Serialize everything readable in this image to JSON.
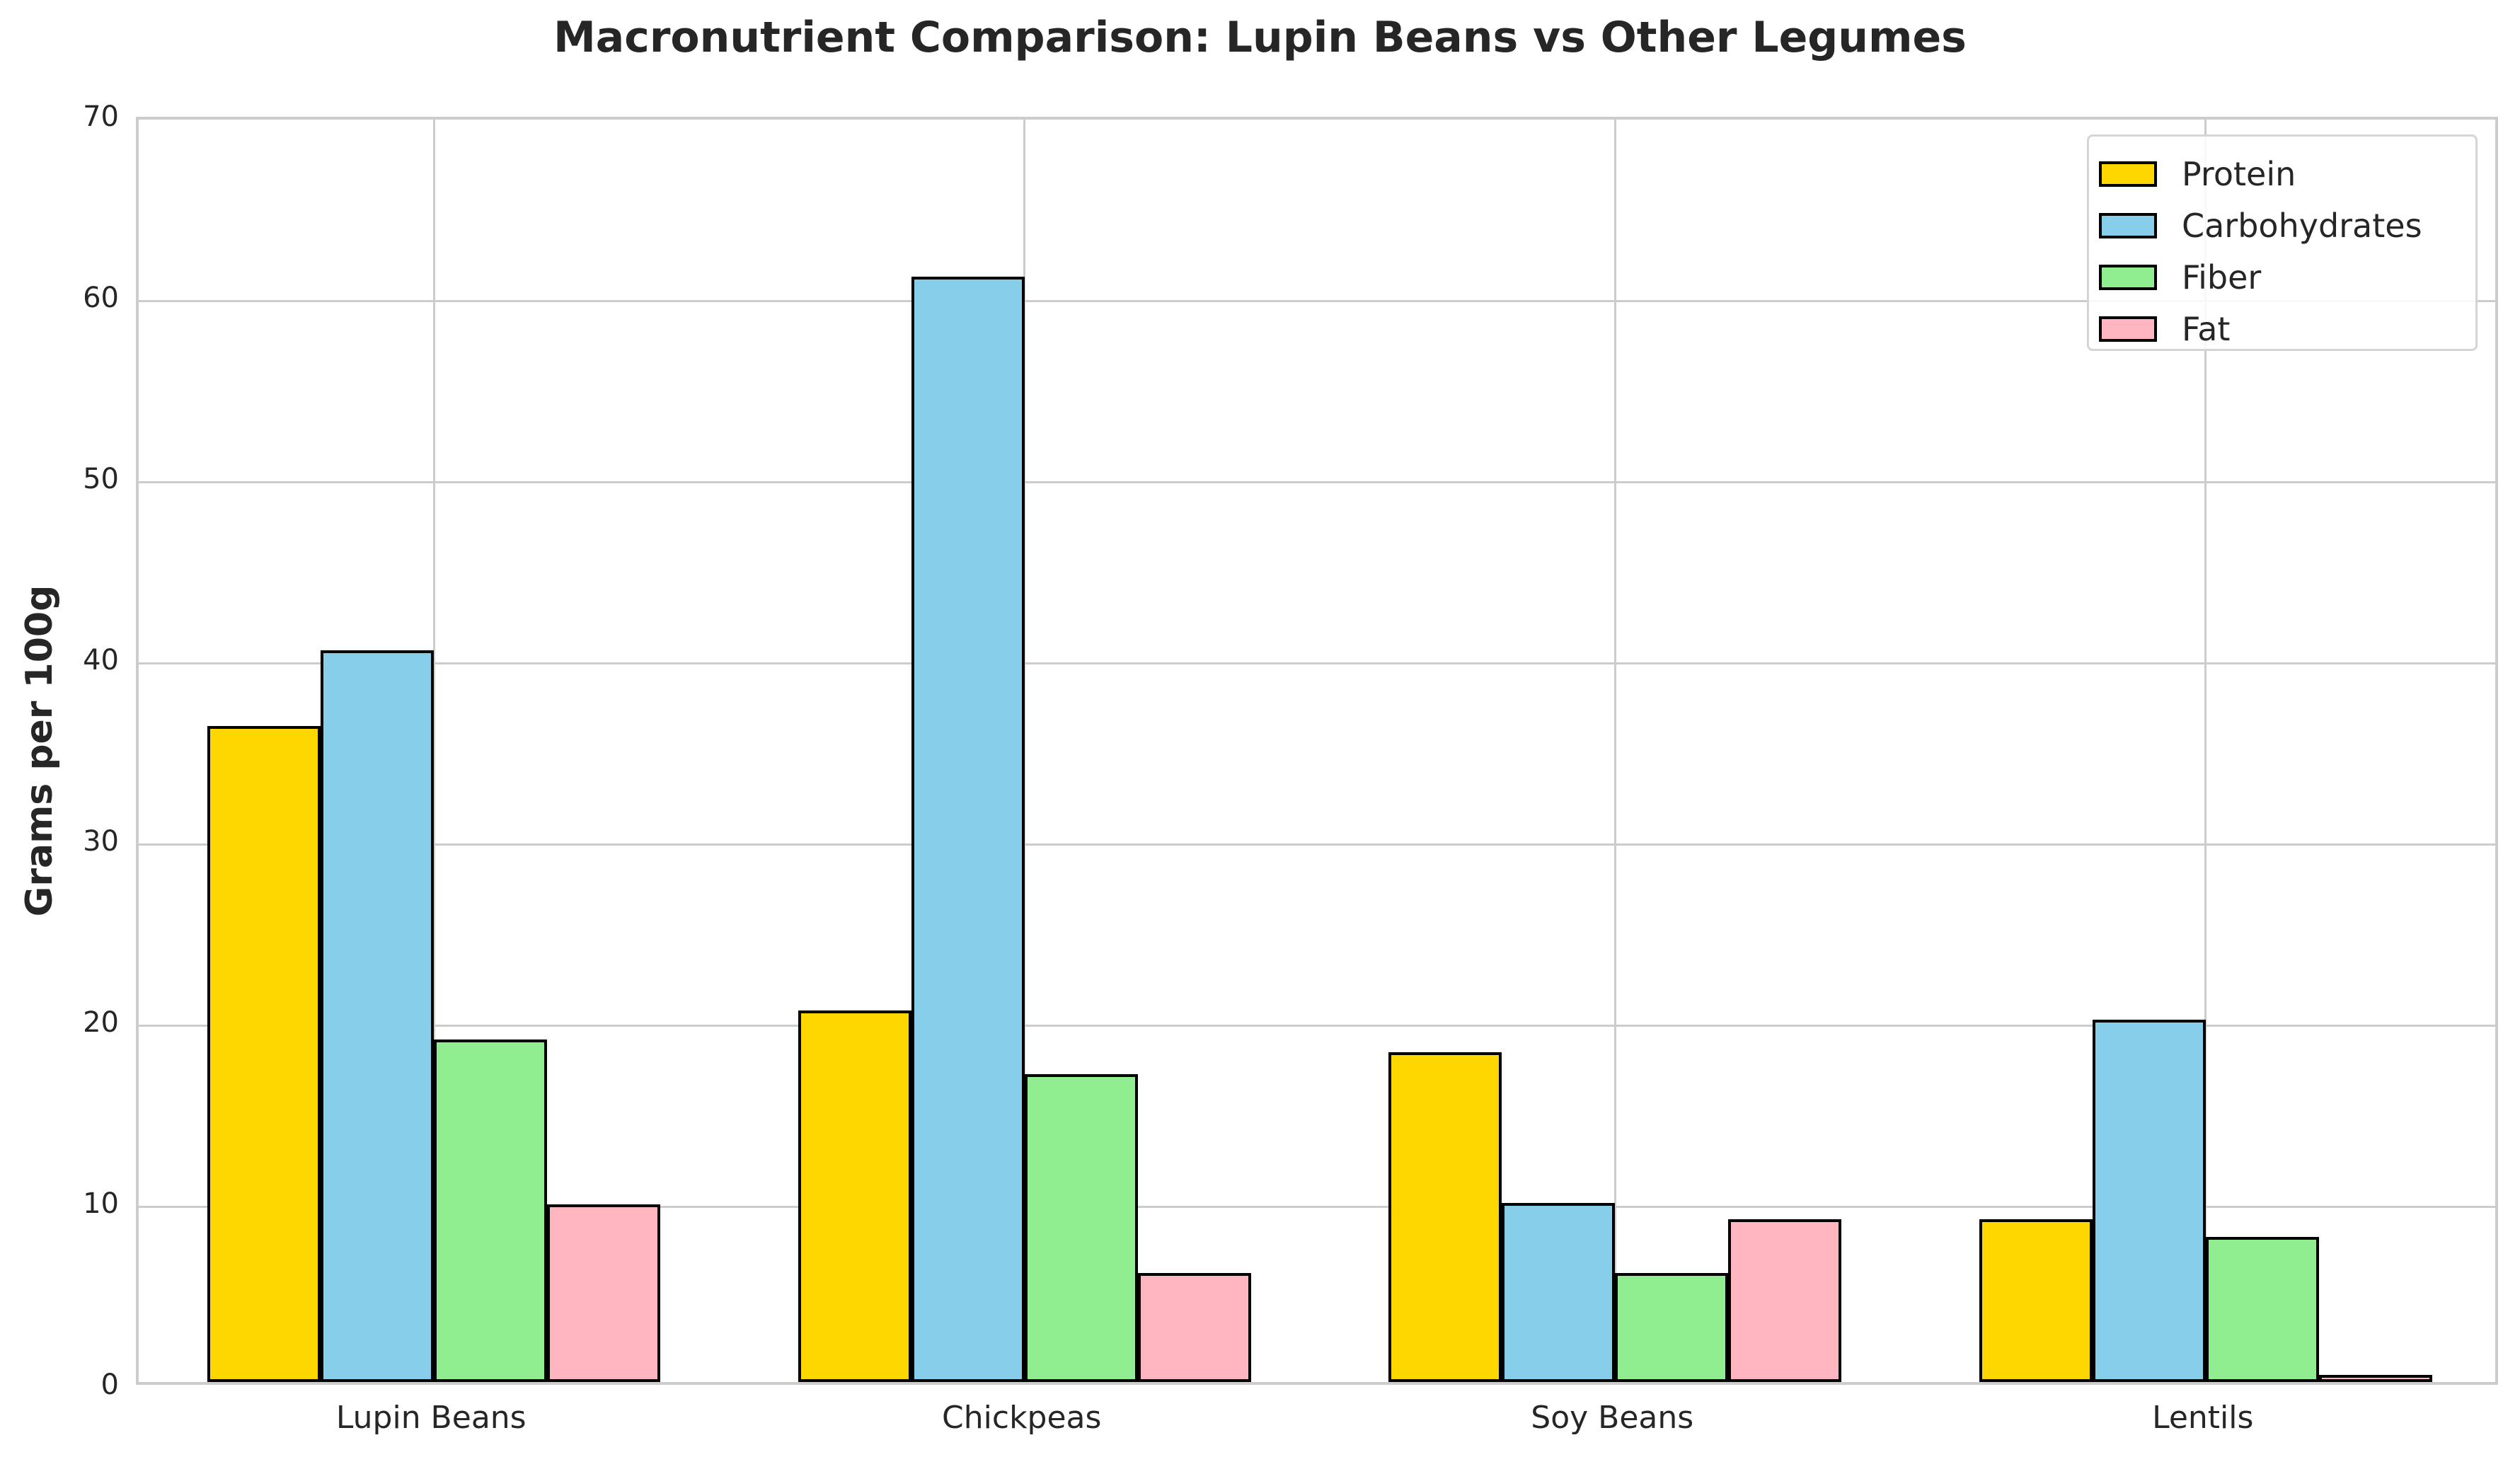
{
  "chart_data": {
    "type": "bar",
    "title": "Macronutrient Comparison: Lupin Beans vs Other Legumes",
    "xlabel": "",
    "ylabel": "Grams per 100g",
    "ylim": [
      0,
      70
    ],
    "yticks": [
      0,
      10,
      20,
      30,
      40,
      50,
      60,
      70
    ],
    "grid": true,
    "legend_position": "upper right",
    "categories": [
      "Lupin Beans",
      "Chickpeas",
      "Soy Beans",
      "Lentils"
    ],
    "series": [
      {
        "name": "Protein",
        "color": "#FFD700",
        "values": [
          36.2,
          20.5,
          18.2,
          9.0
        ]
      },
      {
        "name": "Carbohydrates",
        "color": "#87CEEB",
        "values": [
          40.4,
          61.0,
          9.9,
          20.0
        ]
      },
      {
        "name": "Fiber",
        "color": "#90EE90",
        "values": [
          18.9,
          17.0,
          6.0,
          8.0
        ]
      },
      {
        "name": "Fat",
        "color": "#FFB6C1",
        "values": [
          9.8,
          6.0,
          9.0,
          0.4
        ]
      }
    ]
  }
}
